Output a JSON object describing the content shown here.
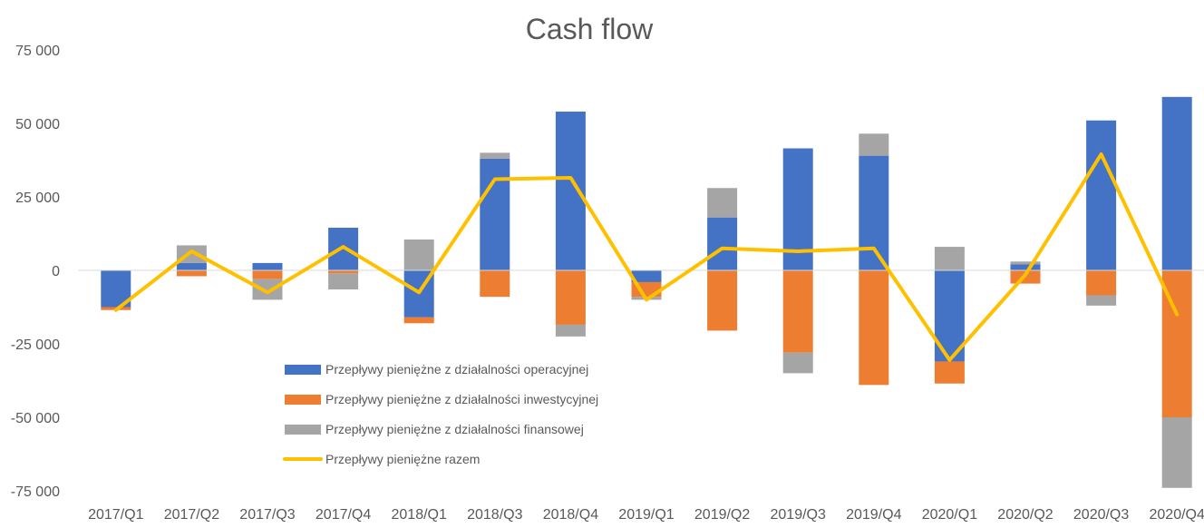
{
  "chart_data": {
    "type": "bar",
    "stacked": true,
    "title": "Cash flow",
    "xlabel": "",
    "ylabel": "",
    "ylim": [
      -75000,
      75000
    ],
    "y_ticks": [
      75000,
      50000,
      25000,
      0,
      -25000,
      -50000,
      -75000
    ],
    "y_tick_labels": [
      "75 000",
      "50 000",
      "25 000",
      "0",
      "-25 000",
      "-50 000",
      "-75 000"
    ],
    "grid": false,
    "legend_position": "bottom-left inside plot",
    "categories": [
      "2017/Q1",
      "2017/Q2",
      "2017/Q3",
      "2017/Q4",
      "2018/Q1",
      "2018/Q3",
      "2018/Q4",
      "2019/Q1",
      "2019/Q2",
      "2019/Q3",
      "2019/Q4",
      "2020/Q1",
      "2020/Q2",
      "2020/Q3",
      "2020/Q4"
    ],
    "series": [
      {
        "name": "Przepływy pieniężne z działalności operacyjnej",
        "type": "bar",
        "color": "#4472C4",
        "values": [
          -12500,
          2500,
          2500,
          14500,
          -16000,
          38000,
          54000,
          -4000,
          18000,
          41500,
          39000,
          -31000,
          2000,
          51000,
          59000
        ]
      },
      {
        "name": "Przepływy pieniężne z działalności inwestycyjnej",
        "type": "bar",
        "color": "#ED7D31",
        "values": [
          -1000,
          -2000,
          -3000,
          -1000,
          -2000,
          -9000,
          -18500,
          -5000,
          -20500,
          -28000,
          -39000,
          -7500,
          -4500,
          -8500,
          -50000
        ]
      },
      {
        "name": "Przepływy pieniężne z działalności finansowej",
        "type": "bar",
        "color": "#A5A5A5",
        "values": [
          0,
          6000,
          -7000,
          -5500,
          10500,
          2000,
          -4000,
          -1000,
          10000,
          -7000,
          7500,
          8000,
          1000,
          -3500,
          -24000
        ]
      },
      {
        "name": "Przepływy pieniężne razem",
        "type": "line",
        "color": "#FFC000",
        "values": [
          -13500,
          6500,
          -7500,
          8000,
          -7500,
          31000,
          31500,
          -10000,
          7500,
          6500,
          7500,
          -30500,
          -1500,
          39500,
          -15000
        ]
      }
    ]
  }
}
